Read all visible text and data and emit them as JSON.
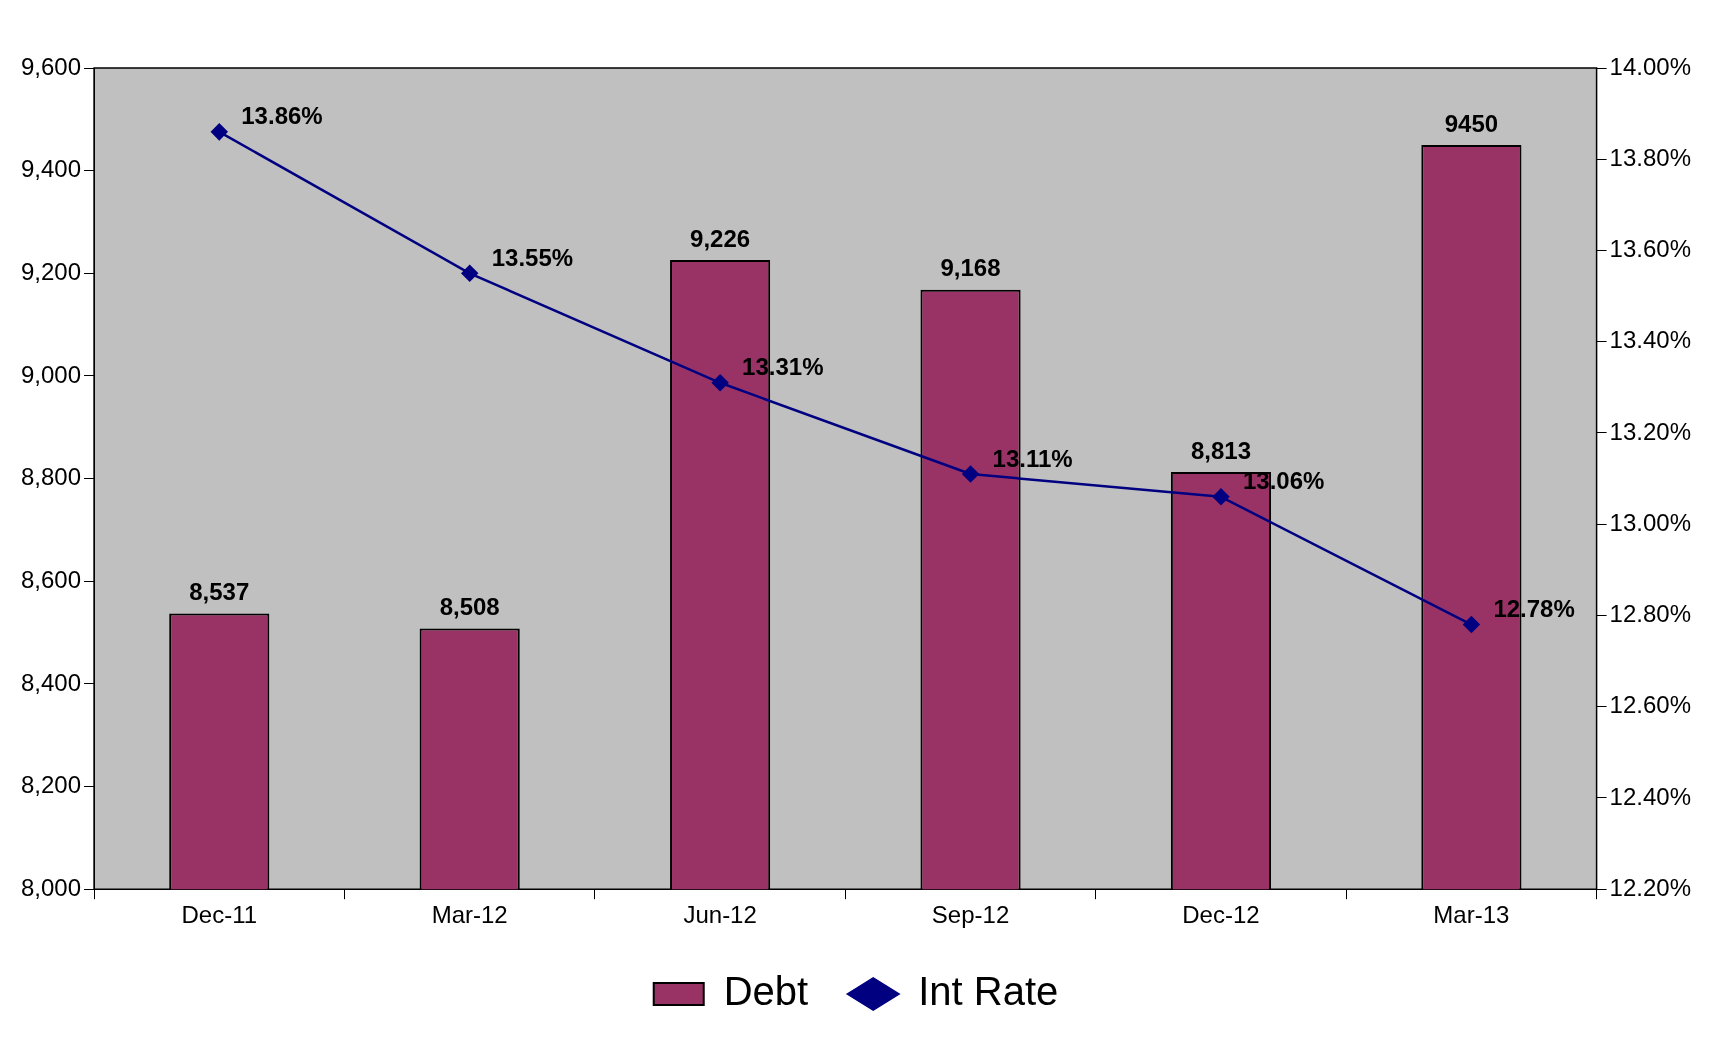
{
  "chart_data": {
    "type": "bar",
    "categories": [
      "Dec-11",
      "Mar-12",
      "Jun-12",
      "Sep-12",
      "Dec-12",
      "Mar-13"
    ],
    "series": [
      {
        "name": "Debt",
        "color": "#993366",
        "values": [
          8537,
          8508,
          9226,
          9168,
          8813,
          9450
        ],
        "value_labels": [
          "8,537",
          "8,508",
          "9,226",
          "9,168",
          "8,813",
          "9450"
        ]
      },
      {
        "name": "Int Rate",
        "type": "line",
        "axis": "y2",
        "color": "#000080",
        "marker": "diamond",
        "values": [
          13.86,
          13.55,
          13.31,
          13.11,
          13.06,
          12.78
        ],
        "value_labels": [
          "13.86%",
          "13.55%",
          "13.31%",
          "13.11%",
          "13.06%",
          "12.78%"
        ]
      }
    ],
    "ylim": [
      8000,
      9600
    ],
    "yticks": [
      {
        "value": 8000,
        "label": "8,000"
      },
      {
        "value": 8200,
        "label": "8,200"
      },
      {
        "value": 8400,
        "label": "8,400"
      },
      {
        "value": 8600,
        "label": "8,600"
      },
      {
        "value": 8800,
        "label": "8,800"
      },
      {
        "value": 9000,
        "label": "9,000"
      },
      {
        "value": 9200,
        "label": "9,200"
      },
      {
        "value": 9400,
        "label": "9,400"
      },
      {
        "value": 9600,
        "label": "9,600"
      }
    ],
    "y2lim": [
      12.2,
      14.0
    ],
    "y2ticks": [
      {
        "value": 12.2,
        "label": "12.20%"
      },
      {
        "value": 12.4,
        "label": "12.40%"
      },
      {
        "value": 12.6,
        "label": "12.60%"
      },
      {
        "value": 12.8,
        "label": "12.80%"
      },
      {
        "value": 13.0,
        "label": "13.00%"
      },
      {
        "value": 13.2,
        "label": "13.20%"
      },
      {
        "value": 13.4,
        "label": "13.40%"
      },
      {
        "value": 13.6,
        "label": "13.60%"
      },
      {
        "value": 13.8,
        "label": "13.80%"
      },
      {
        "value": 14.0,
        "label": "14.00%"
      }
    ],
    "grid": false,
    "legend": "bottom"
  }
}
